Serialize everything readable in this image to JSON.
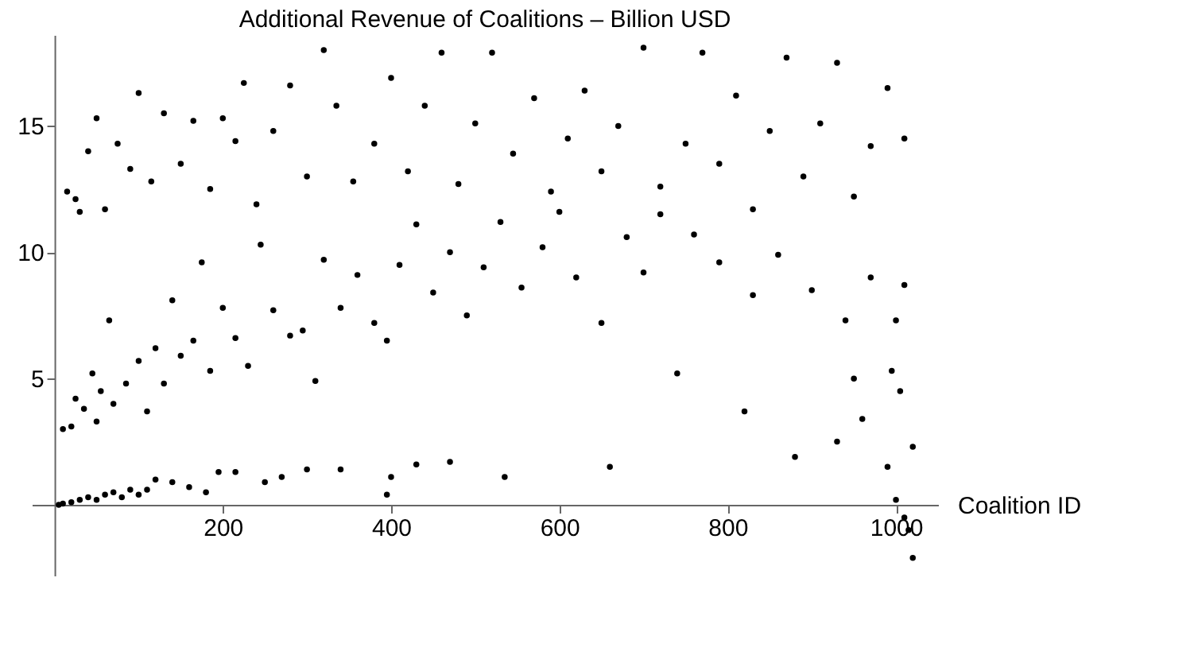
{
  "chart_data": {
    "type": "scatter",
    "title": "Additional Revenue of Coalitions – Billion USD",
    "xlabel": "Coalition ID",
    "marker": "circle",
    "grid": false,
    "xlim": [
      -27,
      1050
    ],
    "ylim": [
      -2.8,
      18.6
    ],
    "xticks": [
      200,
      400,
      600,
      800,
      1000
    ],
    "yticks": [
      5,
      10,
      15
    ],
    "series": [
      {
        "color": "#000000",
        "x": [
          5,
          10,
          20,
          30,
          40,
          50,
          60,
          70,
          80,
          90,
          100,
          110,
          120,
          140,
          160,
          180,
          195,
          215,
          250,
          270,
          300,
          340,
          395,
          400,
          430,
          470,
          535,
          660,
          880,
          960,
          990,
          1000,
          1005,
          1010,
          1015,
          1020,
          1020,
          995,
          950,
          930,
          820,
          740,
          10,
          20,
          25,
          35,
          45,
          50,
          55,
          65,
          70,
          85,
          100,
          110,
          120,
          130,
          140,
          150,
          165,
          175,
          185,
          200,
          215,
          230,
          245,
          260,
          280,
          295,
          310,
          320,
          340,
          360,
          380,
          395,
          410,
          430,
          450,
          470,
          490,
          510,
          530,
          555,
          580,
          600,
          620,
          650,
          680,
          700,
          720,
          760,
          790,
          830,
          860,
          900,
          940,
          970,
          1000,
          1010,
          15,
          25,
          30,
          40,
          50,
          60,
          75,
          90,
          100,
          115,
          130,
          150,
          165,
          185,
          200,
          215,
          225,
          240,
          260,
          280,
          300,
          320,
          335,
          355,
          380,
          400,
          420,
          440,
          460,
          480,
          500,
          520,
          545,
          570,
          590,
          610,
          630,
          650,
          670,
          700,
          720,
          750,
          770,
          790,
          810,
          830,
          850,
          870,
          890,
          910,
          930,
          950,
          970,
          990,
          1010
        ],
        "values": [
          0,
          0.05,
          0.1,
          0.2,
          0.3,
          0.2,
          0.4,
          0.5,
          0.3,
          0.6,
          0.4,
          0.6,
          1.0,
          0.9,
          0.7,
          0.5,
          1.3,
          1.3,
          0.9,
          1.1,
          1.4,
          1.4,
          0.4,
          1.1,
          1.6,
          1.7,
          1.1,
          1.5,
          1.9,
          3.4,
          1.5,
          0.2,
          4.5,
          -0.5,
          -1,
          -2.1,
          2.3,
          5.3,
          5,
          2.5,
          3.7,
          5.2,
          3,
          3.1,
          4.2,
          3.8,
          5.2,
          3.3,
          4.5,
          7.3,
          4,
          4.8,
          5.7,
          3.7,
          6.2,
          4.8,
          8.1,
          5.9,
          6.5,
          9.6,
          5.3,
          7.8,
          6.6,
          5.5,
          10.3,
          7.7,
          6.7,
          6.9,
          4.9,
          9.7,
          7.8,
          9.1,
          7.2,
          6.5,
          9.5,
          11.1,
          8.4,
          10,
          7.5,
          9.4,
          11.2,
          8.6,
          10.2,
          11.6,
          9,
          7.2,
          10.6,
          9.2,
          11.5,
          10.7,
          9.6,
          8.3,
          9.9,
          8.5,
          7.3,
          9,
          7.3,
          8.7,
          12.4,
          12.1,
          11.6,
          14,
          15.3,
          11.7,
          14.3,
          13.3,
          16.3,
          12.8,
          15.5,
          13.5,
          15.2,
          12.5,
          15.3,
          14.4,
          16.7,
          11.9,
          14.8,
          16.6,
          13,
          18,
          15.8,
          12.8,
          14.3,
          16.9,
          13.2,
          15.8,
          17.9,
          12.7,
          15.1,
          17.9,
          13.9,
          16.1,
          12.4,
          14.5,
          16.4,
          13.2,
          15,
          18.1,
          12.6,
          14.3,
          17.9,
          13.5,
          16.2,
          11.7,
          14.8,
          17.7,
          13,
          15.1,
          17.5,
          12.2,
          14.2,
          16.5,
          14.5
        ]
      }
    ]
  }
}
